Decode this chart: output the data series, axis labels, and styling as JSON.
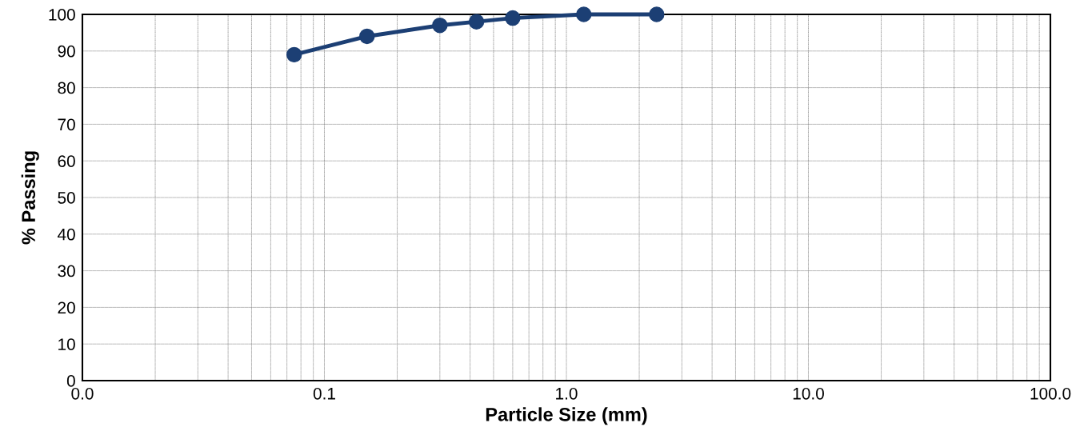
{
  "chart_data": {
    "type": "line",
    "xlabel": "Particle Size (mm)",
    "ylabel": "% Passing",
    "log": "x",
    "x": [
      0.075,
      0.15,
      0.3,
      0.425,
      0.6,
      1.18,
      2.36
    ],
    "series": [
      {
        "color": "#1c3f74",
        "values": [
          89,
          94,
          97,
          98,
          99,
          100,
          100
        ]
      }
    ],
    "xlim": [
      0.01,
      100
    ],
    "xticks": [
      {
        "value": 0.01,
        "label": "0.0"
      },
      {
        "value": 0.1,
        "label": "0.1"
      },
      {
        "value": 1,
        "label": "1.0"
      },
      {
        "value": 10,
        "label": "10.0"
      },
      {
        "value": 100,
        "label": "100.0"
      }
    ],
    "ylim": [
      0,
      100
    ],
    "yticks": [
      0,
      10,
      20,
      30,
      40,
      50,
      60,
      70,
      80,
      90,
      100
    ],
    "grid": true,
    "marker": "circle",
    "line_style": "solid"
  }
}
